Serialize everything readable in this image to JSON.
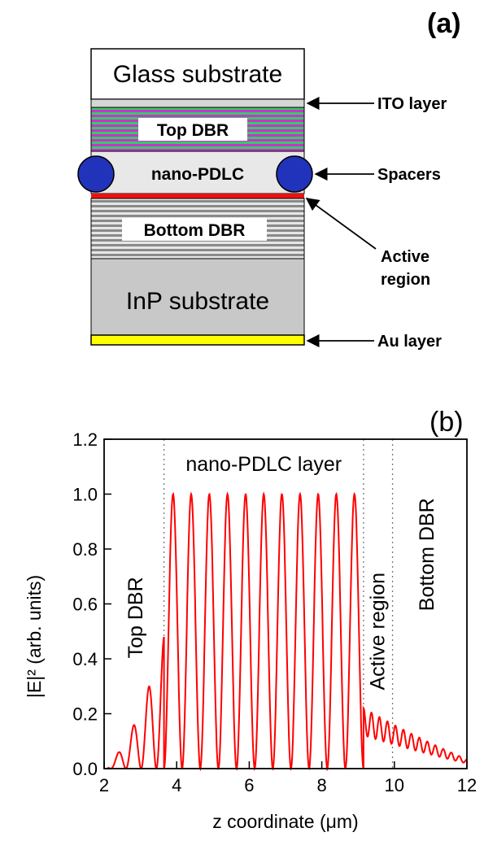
{
  "panel_a": {
    "label": "(a)",
    "layers": {
      "glass": "Glass substrate",
      "top_dbr": "Top DBR",
      "pdlc": "nano-PDLC",
      "bottom_dbr": "Bottom DBR",
      "inp": "InP substrate"
    },
    "callouts": {
      "ito": "ITO layer",
      "spacers": "Spacers",
      "active_1": "Active",
      "active_2": "region",
      "au": "Au layer"
    },
    "colors": {
      "dbr_green": "#33cc66",
      "dbr_magenta": "#cc33cc",
      "spacer_blue": "#2233bb",
      "active_red": "#ee1111",
      "au_yellow": "#ffff00",
      "substrate_gray": "#c8c8c8"
    }
  },
  "chart_data": {
    "type": "line",
    "panel_label": "(b)",
    "xlabel": "z coordinate (μm)",
    "ylabel": "|E|² (arb. units)",
    "xlim": [
      2,
      12
    ],
    "ylim": [
      0,
      1.2
    ],
    "xticks": [
      "2",
      "4",
      "6",
      "8",
      "10",
      "12"
    ],
    "yticks": [
      "0.0",
      "0.2",
      "0.4",
      "0.6",
      "0.8",
      "1.0",
      "1.2"
    ],
    "grid": false,
    "line_color": "#ff0000",
    "boundaries": [
      3.65,
      9.15,
      9.95
    ],
    "region_labels": {
      "top_dbr": "Top DBR",
      "pdlc": "nano-PDLC layer",
      "active": "Active region",
      "bottom_dbr": "Bottom DBR"
    },
    "series": [
      {
        "segments": [
          {
            "x0": 2.1,
            "x1": 3.65,
            "period": 0.42,
            "amp_start": 0.04,
            "amp_end": 0.48
          },
          {
            "x0": 3.65,
            "x1": 9.15,
            "period": 0.5,
            "amp_start": 1.0,
            "amp_end": 1.0
          },
          {
            "x0": 9.15,
            "x1": 12.0,
            "period": 0.22,
            "amp_start": 0.22,
            "amp_end": 0.04
          }
        ]
      }
    ]
  }
}
